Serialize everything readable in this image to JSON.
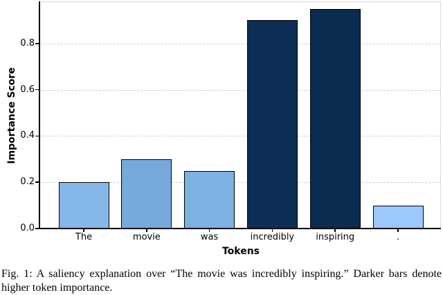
{
  "chart_data": {
    "type": "bar",
    "title": "",
    "xlabel": "Tokens",
    "ylabel": "Importance Score",
    "categories": [
      "The",
      "movie",
      "was",
      "incredibly",
      "inspiring",
      "."
    ],
    "values": [
      0.2,
      0.3,
      0.25,
      0.9,
      0.95,
      0.1
    ],
    "bar_colors": [
      "#85b7ea",
      "#76a9dc",
      "#7db0e3",
      "#0d2e55",
      "#0b2b50",
      "#9bc9fc"
    ],
    "bar_edge_color": "#000000",
    "ylim": [
      0,
      0.975
    ],
    "yticks": [
      0.0,
      0.2,
      0.4,
      0.6,
      0.8
    ],
    "ytick_labels": [
      "0.0",
      "0.2",
      "0.4",
      "0.6",
      "0.8"
    ],
    "grid": "horizontal-dashed",
    "gridline_color": "#cccccc",
    "grid_values": [
      0.2,
      0.4,
      0.6,
      0.8
    ],
    "legend": "none"
  },
  "caption": {
    "text": "Fig. 1: A saliency explanation over “The movie was incredibly inspiring.” Darker bars denote higher token importance."
  }
}
